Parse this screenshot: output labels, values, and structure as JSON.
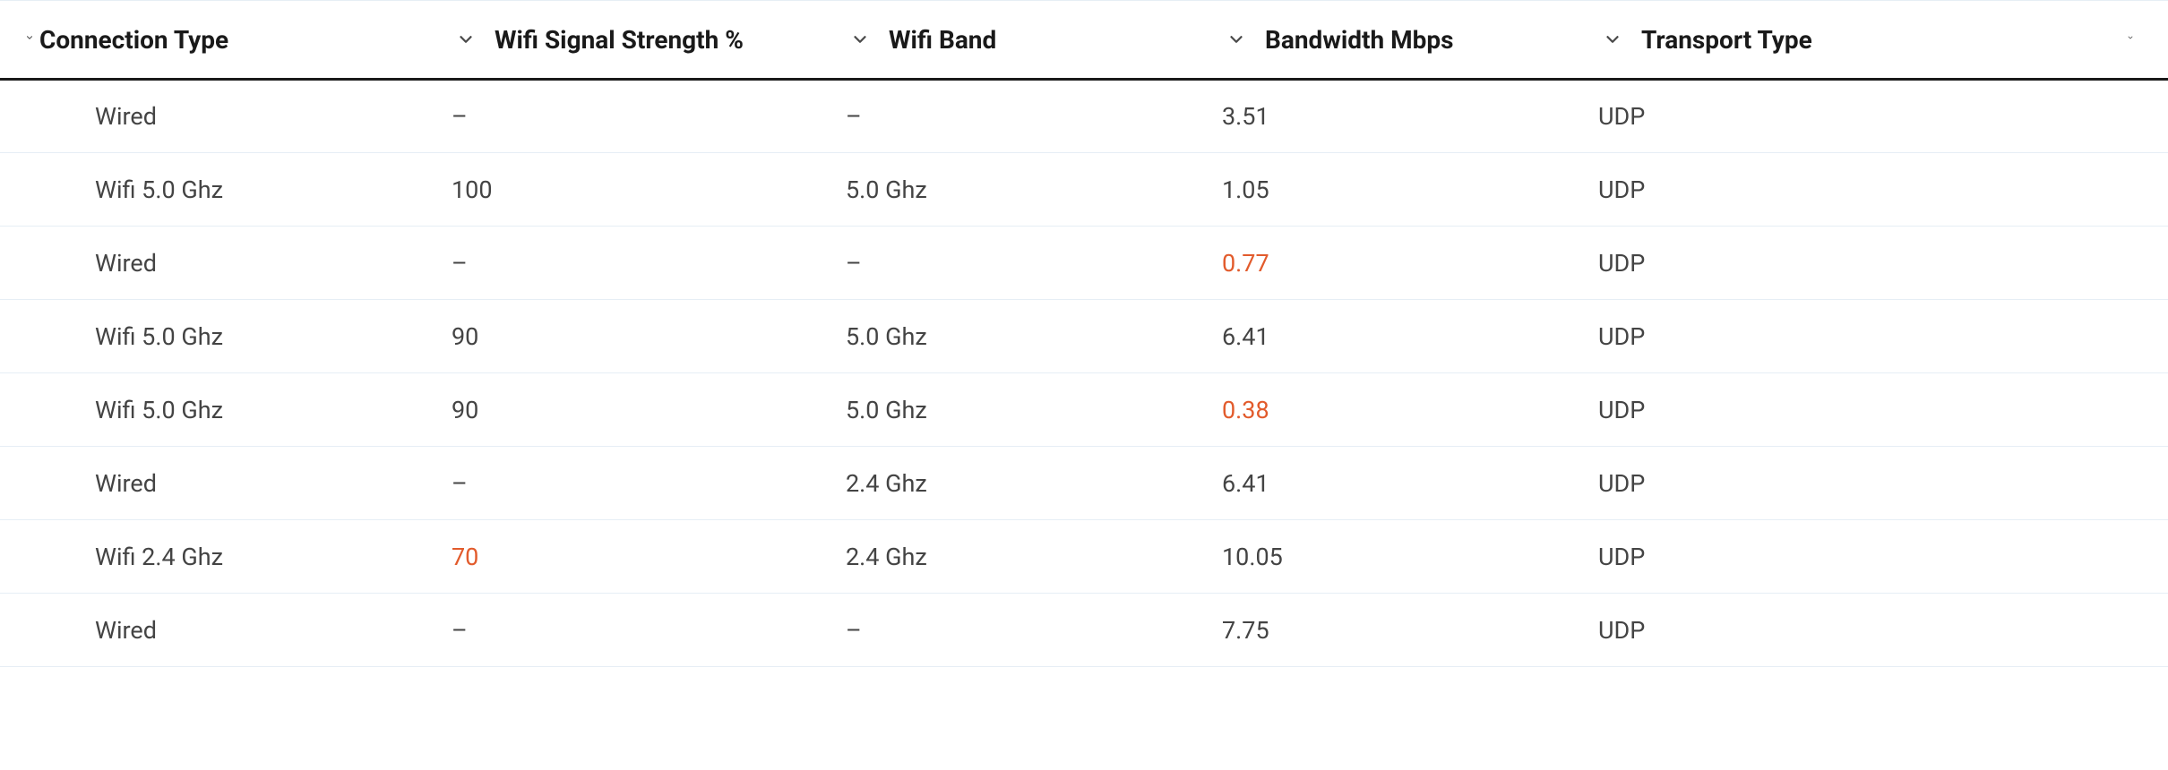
{
  "colors": {
    "text_primary": "#1a1a1a",
    "text_body": "#444444",
    "warn": "#e25b2c",
    "row_border": "#e6eef5",
    "header_underline": "#1a1a1a",
    "background": "#ffffff"
  },
  "table": {
    "columns": [
      {
        "key": "connection_type",
        "label": "Connection Type"
      },
      {
        "key": "wifi_signal",
        "label": "Wifi Signal Strength %"
      },
      {
        "key": "wifi_band",
        "label": "Wifi Band"
      },
      {
        "key": "bandwidth",
        "label": "Bandwidth Mbps"
      },
      {
        "key": "transport",
        "label": "Transport Type"
      }
    ],
    "rows": [
      {
        "connection_type": "Wired",
        "wifi_signal": "–",
        "wifi_signal_warn": false,
        "wifi_band": "–",
        "bandwidth": "3.51",
        "bandwidth_warn": false,
        "transport": "UDP"
      },
      {
        "connection_type": "Wifi 5.0 Ghz",
        "wifi_signal": "100",
        "wifi_signal_warn": false,
        "wifi_band": "5.0 Ghz",
        "bandwidth": "1.05",
        "bandwidth_warn": false,
        "transport": "UDP"
      },
      {
        "connection_type": "Wired",
        "wifi_signal": "–",
        "wifi_signal_warn": false,
        "wifi_band": "–",
        "bandwidth": "0.77",
        "bandwidth_warn": true,
        "transport": "UDP"
      },
      {
        "connection_type": "Wifi 5.0 Ghz",
        "wifi_signal": "90",
        "wifi_signal_warn": false,
        "wifi_band": "5.0 Ghz",
        "bandwidth": "6.41",
        "bandwidth_warn": false,
        "transport": "UDP"
      },
      {
        "connection_type": "Wifi 5.0 Ghz",
        "wifi_signal": "90",
        "wifi_signal_warn": false,
        "wifi_band": "5.0 Ghz",
        "bandwidth": "0.38",
        "bandwidth_warn": true,
        "transport": "UDP"
      },
      {
        "connection_type": "Wired",
        "wifi_signal": "–",
        "wifi_signal_warn": false,
        "wifi_band": "2.4 Ghz",
        "bandwidth": "6.41",
        "bandwidth_warn": false,
        "transport": "UDP"
      },
      {
        "connection_type": "Wifi 2.4 Ghz",
        "wifi_signal": "70",
        "wifi_signal_warn": true,
        "wifi_band": "2.4 Ghz",
        "bandwidth": "10.05",
        "bandwidth_warn": false,
        "transport": "UDP"
      },
      {
        "connection_type": "Wired",
        "wifi_signal": "–",
        "wifi_signal_warn": false,
        "wifi_band": "–",
        "bandwidth": "7.75",
        "bandwidth_warn": false,
        "transport": "UDP"
      }
    ]
  }
}
